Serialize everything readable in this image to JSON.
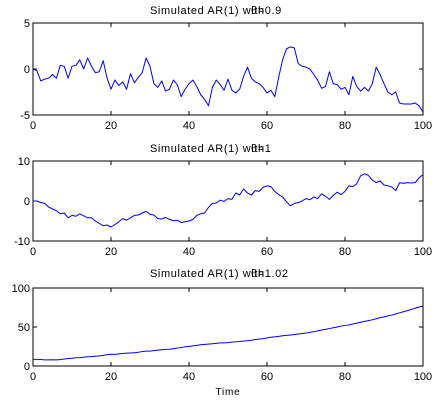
{
  "chart_data": [
    {
      "type": "line",
      "title": "Simulated AR(1) withθ=0.9",
      "title_main": "Simulated AR(1) with",
      "title_overlap": "θ=0.9",
      "xlabel": "",
      "ylabel": "",
      "xlim": [
        0,
        100
      ],
      "ylim": [
        -5,
        5
      ],
      "xticks": [
        "0",
        "20",
        "40",
        "60",
        "80",
        "100"
      ],
      "yticks": [
        "-5",
        "0",
        "5"
      ],
      "xtick_values": [
        0,
        20,
        40,
        60,
        80,
        100
      ],
      "ytick_values": [
        -5,
        0,
        5
      ],
      "grid": false,
      "series": [
        {
          "color": "#0000ff",
          "values": [
            0.0,
            -0.2,
            -1.3,
            -1.1,
            -1.0,
            -0.6,
            -1.0,
            0.4,
            0.3,
            -1.0,
            0.3,
            0.4,
            1.0,
            0.0,
            1.2,
            0.3,
            -0.4,
            -0.3,
            0.9,
            -1.0,
            -2.2,
            -1.2,
            -1.8,
            -1.4,
            -2.2,
            -0.5,
            -1.5,
            -0.9,
            -0.4,
            1.2,
            0.3,
            -1.6,
            -2.0,
            -1.3,
            -2.4,
            -2.2,
            -1.2,
            -1.7,
            -3.0,
            -2.2,
            -1.6,
            -1.2,
            -1.9,
            -2.8,
            -3.3,
            -4.0,
            -2.0,
            -1.2,
            -1.7,
            -2.3,
            -1.1,
            -2.3,
            -2.6,
            -2.2,
            -0.8,
            0.2,
            -1.0,
            -1.4,
            -1.6,
            -2.0,
            -2.6,
            -2.3,
            -3.0,
            -0.9,
            1.0,
            2.2,
            2.4,
            2.3,
            0.6,
            0.3,
            0.2,
            0.0,
            -0.6,
            -1.2,
            -2.1,
            -1.9,
            -0.3,
            -1.6,
            -1.7,
            -2.2,
            -2.0,
            -2.8,
            -0.8,
            -1.9,
            -2.4,
            -2.0,
            -2.4,
            -1.6,
            0.2,
            -0.6,
            -1.6,
            -2.5,
            -2.8,
            -2.5,
            -3.7,
            -3.8,
            -3.8,
            -3.8,
            -3.7,
            -4.0,
            -4.7
          ]
        }
      ]
    },
    {
      "type": "line",
      "title": "Simulated AR(1) withθ=1",
      "title_main": "Simulated AR(1) with",
      "title_overlap": "θ=1",
      "xlabel": "",
      "ylabel": "",
      "xlim": [
        0,
        100
      ],
      "ylim": [
        -10,
        10
      ],
      "xticks": [
        "0",
        "20",
        "40",
        "60",
        "80",
        "100"
      ],
      "yticks": [
        "-10",
        "0",
        "10"
      ],
      "xtick_values": [
        0,
        20,
        40,
        60,
        80,
        100
      ],
      "ytick_values": [
        -10,
        0,
        10
      ],
      "grid": false,
      "series": [
        {
          "color": "#0000ff",
          "values": [
            0.0,
            0.0,
            -0.4,
            -0.6,
            -1.5,
            -2.0,
            -2.4,
            -3.2,
            -3.0,
            -4.2,
            -3.6,
            -3.8,
            -3.2,
            -3.7,
            -4.2,
            -4.2,
            -5.0,
            -5.6,
            -6.2,
            -6.0,
            -6.5,
            -5.9,
            -5.2,
            -4.4,
            -4.8,
            -4.2,
            -3.6,
            -3.5,
            -3.0,
            -2.6,
            -3.3,
            -3.5,
            -4.4,
            -4.5,
            -4.1,
            -4.6,
            -4.9,
            -4.8,
            -5.4,
            -5.2,
            -5.0,
            -4.6,
            -3.6,
            -3.2,
            -3.0,
            -1.6,
            -0.6,
            -0.5,
            0.2,
            -0.1,
            0.6,
            0.4,
            2.0,
            1.5,
            3.0,
            2.0,
            1.5,
            2.6,
            2.4,
            3.4,
            3.8,
            3.6,
            2.4,
            1.6,
            1.0,
            -0.2,
            -1.2,
            -0.6,
            -0.4,
            0.0,
            0.6,
            0.3,
            1.0,
            0.6,
            1.8,
            1.2,
            0.4,
            1.4,
            2.2,
            1.6,
            2.4,
            3.8,
            3.6,
            4.3,
            6.3,
            6.8,
            6.4,
            5.2,
            4.6,
            5.0,
            4.0,
            3.8,
            3.5,
            2.6,
            4.6,
            4.4,
            4.6,
            4.5,
            4.6,
            5.8,
            6.6
          ]
        }
      ]
    },
    {
      "type": "line",
      "title": "Simulated AR(1) withθ=1.02",
      "title_main": "Simulated AR(1) with",
      "title_overlap": "θ=1.02",
      "xlabel": "Time",
      "ylabel": "",
      "xlim": [
        0,
        100
      ],
      "ylim": [
        0,
        100
      ],
      "xticks": [
        "0",
        "20",
        "40",
        "60",
        "80",
        "100"
      ],
      "yticks": [
        "0",
        "50",
        "100"
      ],
      "xtick_values": [
        0,
        20,
        40,
        60,
        80,
        100
      ],
      "ytick_values": [
        0,
        50,
        100
      ],
      "grid": false,
      "series": [
        {
          "color": "#0000ff",
          "values": [
            8.5,
            8.5,
            8.3,
            7.8,
            7.9,
            8.0,
            7.8,
            8.2,
            9.0,
            9.5,
            10.0,
            10.5,
            10.8,
            11.3,
            11.8,
            12.0,
            12.5,
            13.0,
            13.6,
            14.5,
            15.0,
            14.9,
            15.6,
            16.1,
            16.5,
            16.7,
            17.0,
            17.6,
            18.5,
            19.0,
            19.0,
            19.7,
            20.3,
            20.9,
            21.3,
            21.5,
            22.2,
            23.0,
            23.6,
            24.6,
            25.0,
            25.8,
            26.4,
            27.2,
            27.8,
            28.1,
            28.5,
            29.0,
            29.6,
            29.7,
            30.0,
            30.6,
            31.0,
            31.4,
            32.0,
            32.4,
            33.0,
            33.8,
            34.6,
            35.0,
            36.0,
            36.8,
            37.4,
            38.0,
            38.8,
            39.2,
            39.8,
            40.4,
            41.0,
            41.6,
            42.2,
            43.1,
            44.0,
            45.0,
            46.2,
            47.0,
            48.0,
            49.1,
            50.0,
            51.2,
            52.0,
            52.6,
            53.8,
            55.0,
            56.1,
            57.2,
            58.2,
            59.2,
            60.6,
            62.0,
            63.0,
            64.2,
            65.3,
            66.8,
            68.2,
            69.6,
            71.0,
            72.5,
            74.0,
            75.5,
            77.0
          ]
        }
      ]
    }
  ]
}
